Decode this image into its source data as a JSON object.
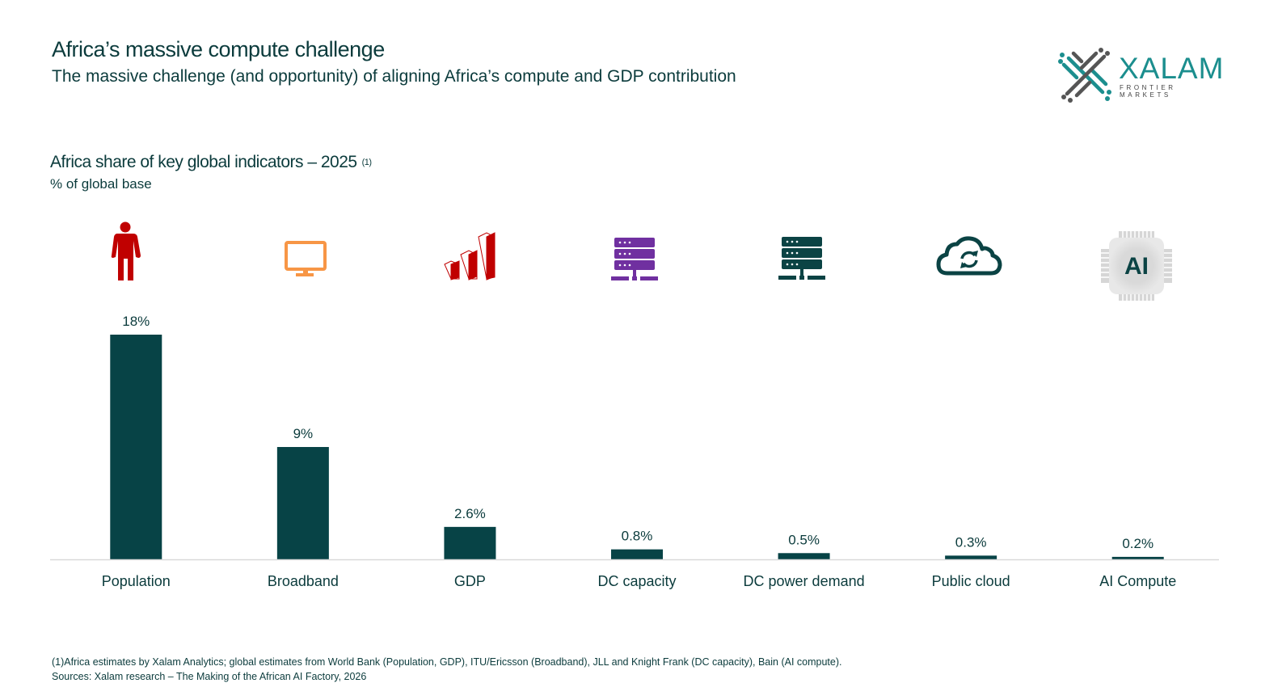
{
  "header": {
    "title": "Africa’s massive compute challenge",
    "subtitle": "The massive challenge (and opportunity) of aligning Africa’s compute and GDP contribution"
  },
  "logo": {
    "word": "XALAM",
    "tagline": "FRONTIER MARKETS"
  },
  "chart_data": {
    "type": "bar",
    "title": "Africa share of key global indicators – 2025",
    "title_note": "(1)",
    "ylabel": "% of global base",
    "categories": [
      "Population",
      "Broadband",
      "GDP",
      "DC capacity",
      "DC power demand",
      "Public cloud",
      "AI Compute"
    ],
    "values": [
      18,
      9,
      2.6,
      0.8,
      0.5,
      0.3,
      0.2
    ],
    "data_labels": [
      "18%",
      "9%",
      "2.6%",
      "0.8%",
      "0.5%",
      "0.3%",
      "0.2%"
    ],
    "icons": [
      "person-icon",
      "monitor-icon",
      "bar-chart-icon",
      "server-icon",
      "server-icon",
      "cloud-sync-icon",
      "ai-chip-icon"
    ],
    "icon_colors": [
      "#c00000",
      "#f79646",
      "#c00000",
      "#7030a0",
      "#0b4344",
      "#0b4344",
      "#0b4344"
    ],
    "bar_color": "#074346",
    "ylim": [
      0,
      18
    ],
    "grid": false
  },
  "footnotes": {
    "note": "(1)Africa estimates by Xalam Analytics; global estimates from World Bank (Population, GDP), ITU/Ericsson (Broadband), JLL and Knight Frank (DC capacity), Bain (AI compute).",
    "sources": "Sources: Xalam research – The Making of the African AI Factory, 2026"
  }
}
